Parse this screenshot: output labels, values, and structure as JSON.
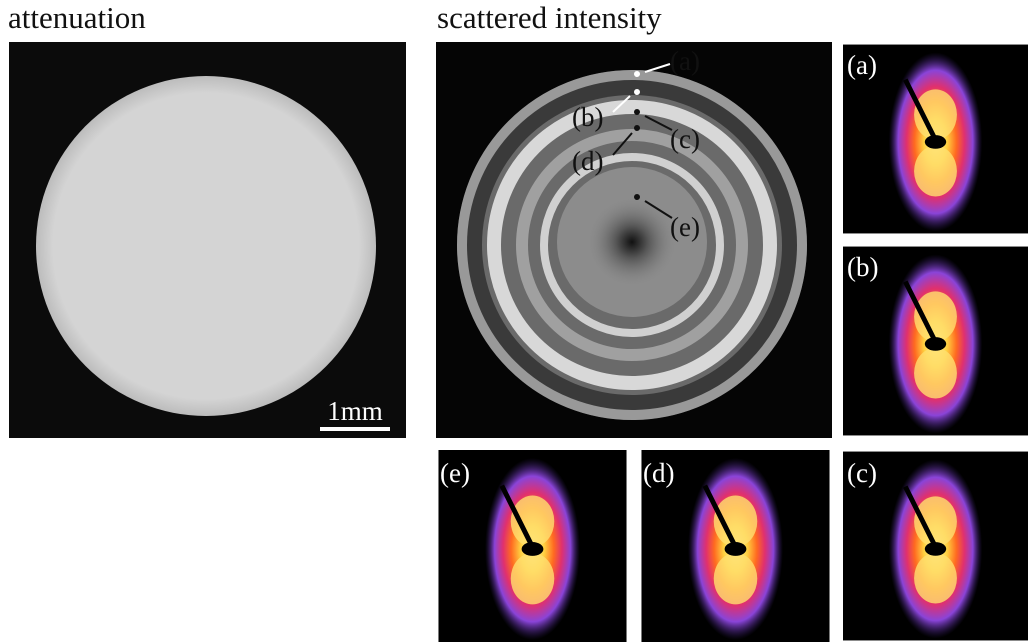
{
  "header": {
    "left_title": "attenuation",
    "right_title": "scattered intensity"
  },
  "scale_bar": "1mm",
  "points": [
    {
      "label": "(a)"
    },
    {
      "label": "(b)"
    },
    {
      "label": "(c)"
    },
    {
      "label": "(d)"
    },
    {
      "label": "(e)"
    }
  ],
  "panels": [
    {
      "label": "(a)"
    },
    {
      "label": "(b)"
    },
    {
      "label": "(e)"
    },
    {
      "label": "(d)"
    },
    {
      "label": "(c)"
    }
  ]
}
